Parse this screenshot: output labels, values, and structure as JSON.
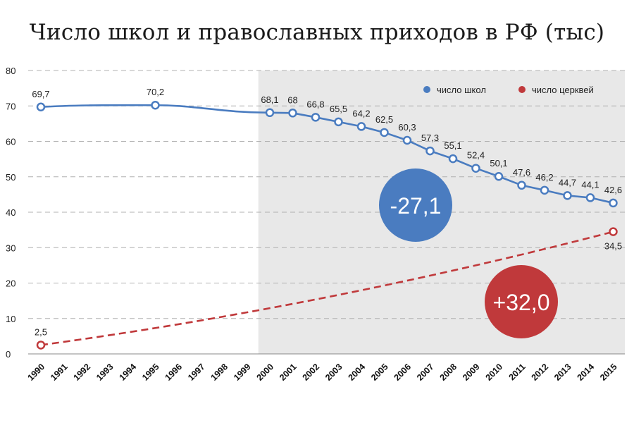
{
  "title": "Число школ и православных приходов в РФ (тыс)",
  "legend": {
    "schools": "число школ",
    "churches": "число церквей"
  },
  "annotations": {
    "schools_change": "-27,1",
    "churches_change": "+32,0"
  },
  "colors": {
    "schools": "#4a7cc0",
    "churches": "#c0393b",
    "shaded_region": "#e8e8e8",
    "schools_bubble": "#4a7cc0",
    "churches_bubble": "#c0393b"
  },
  "chart_data": {
    "type": "line",
    "title": "Число школ и православных приходов в РФ (тыс)",
    "xlabel": "",
    "ylabel": "",
    "categories": [
      "1990",
      "1991",
      "1992",
      "1993",
      "1994",
      "1995",
      "1996",
      "1997",
      "1998",
      "1999",
      "2000",
      "2001",
      "2002",
      "2003",
      "2004",
      "2005",
      "2006",
      "2007",
      "2008",
      "2009",
      "2010",
      "2011",
      "2012",
      "2013",
      "2014",
      "2015"
    ],
    "ylim": [
      0,
      80
    ],
    "yticks": [
      0,
      10,
      20,
      30,
      40,
      50,
      60,
      70,
      80
    ],
    "grid": true,
    "legend_position": "top-right",
    "shaded_from": "2000",
    "series": [
      {
        "name": "число школ",
        "style": "solid",
        "points": [
          {
            "x": "1990",
            "y": 69.7,
            "label": "69,7"
          },
          {
            "x": "1995",
            "y": 70.2,
            "label": "70,2"
          },
          {
            "x": "2000",
            "y": 68.1,
            "label": "68,1"
          },
          {
            "x": "2001",
            "y": 68.0,
            "label": "68"
          },
          {
            "x": "2002",
            "y": 66.8,
            "label": "66,8"
          },
          {
            "x": "2003",
            "y": 65.5,
            "label": "65,5"
          },
          {
            "x": "2004",
            "y": 64.2,
            "label": "64,2"
          },
          {
            "x": "2005",
            "y": 62.5,
            "label": "62,5"
          },
          {
            "x": "2006",
            "y": 60.3,
            "label": "60,3"
          },
          {
            "x": "2007",
            "y": 57.3,
            "label": "57,3"
          },
          {
            "x": "2008",
            "y": 55.1,
            "label": "55,1"
          },
          {
            "x": "2009",
            "y": 52.4,
            "label": "52,4"
          },
          {
            "x": "2010",
            "y": 50.1,
            "label": "50,1"
          },
          {
            "x": "2011",
            "y": 47.6,
            "label": "47,6"
          },
          {
            "x": "2012",
            "y": 46.2,
            "label": "46,2"
          },
          {
            "x": "2013",
            "y": 44.7,
            "label": "44,7"
          },
          {
            "x": "2014",
            "y": 44.1,
            "label": "44,1"
          },
          {
            "x": "2015",
            "y": 42.6,
            "label": "42,6"
          }
        ]
      },
      {
        "name": "число церквей",
        "style": "dashed",
        "points": [
          {
            "x": "1990",
            "y": 2.5,
            "label": "2,5"
          },
          {
            "x": "2015",
            "y": 34.5,
            "label": "34,5"
          }
        ]
      }
    ]
  }
}
